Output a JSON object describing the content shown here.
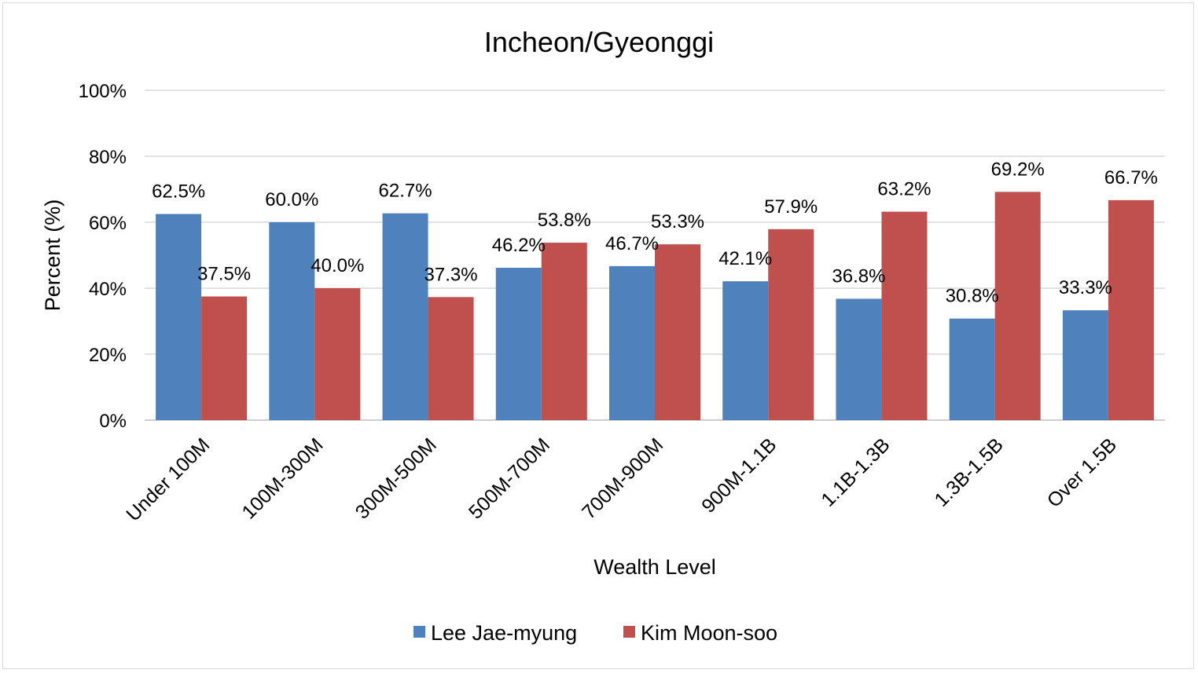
{
  "chart_data": {
    "type": "bar",
    "title": "Incheon/Gyeonggi",
    "xlabel": "Wealth Level",
    "ylabel": "Percent (%)",
    "ylim": [
      0,
      100
    ],
    "y_ticks": [
      "0%",
      "20%",
      "40%",
      "60%",
      "80%",
      "100%"
    ],
    "categories": [
      "Under 100M",
      "100M-300M",
      "300M-500M",
      "500M-700M",
      "700M-900M",
      "900M-1.1B",
      "1.1B-1.3B",
      "1.3B-1.5B",
      "Over 1.5B"
    ],
    "series": [
      {
        "name": "Lee Jae-myung",
        "color": "#4F81BD",
        "values": [
          62.5,
          60.0,
          62.7,
          46.2,
          46.7,
          42.1,
          36.8,
          30.8,
          33.3
        ],
        "labels": [
          "62.5%",
          "60.0%",
          "62.7%",
          "46.2%",
          "46.7%",
          "42.1%",
          "36.8%",
          "30.8%",
          "33.3%"
        ]
      },
      {
        "name": "Kim Moon-soo",
        "color": "#C0504D",
        "values": [
          37.5,
          40.0,
          37.3,
          53.8,
          53.3,
          57.9,
          63.2,
          69.2,
          66.7
        ],
        "labels": [
          "37.5%",
          "40.0%",
          "37.3%",
          "53.8%",
          "53.3%",
          "57.9%",
          "63.2%",
          "69.2%",
          "66.7%"
        ]
      }
    ],
    "grid": true,
    "legend_position": "bottom"
  }
}
